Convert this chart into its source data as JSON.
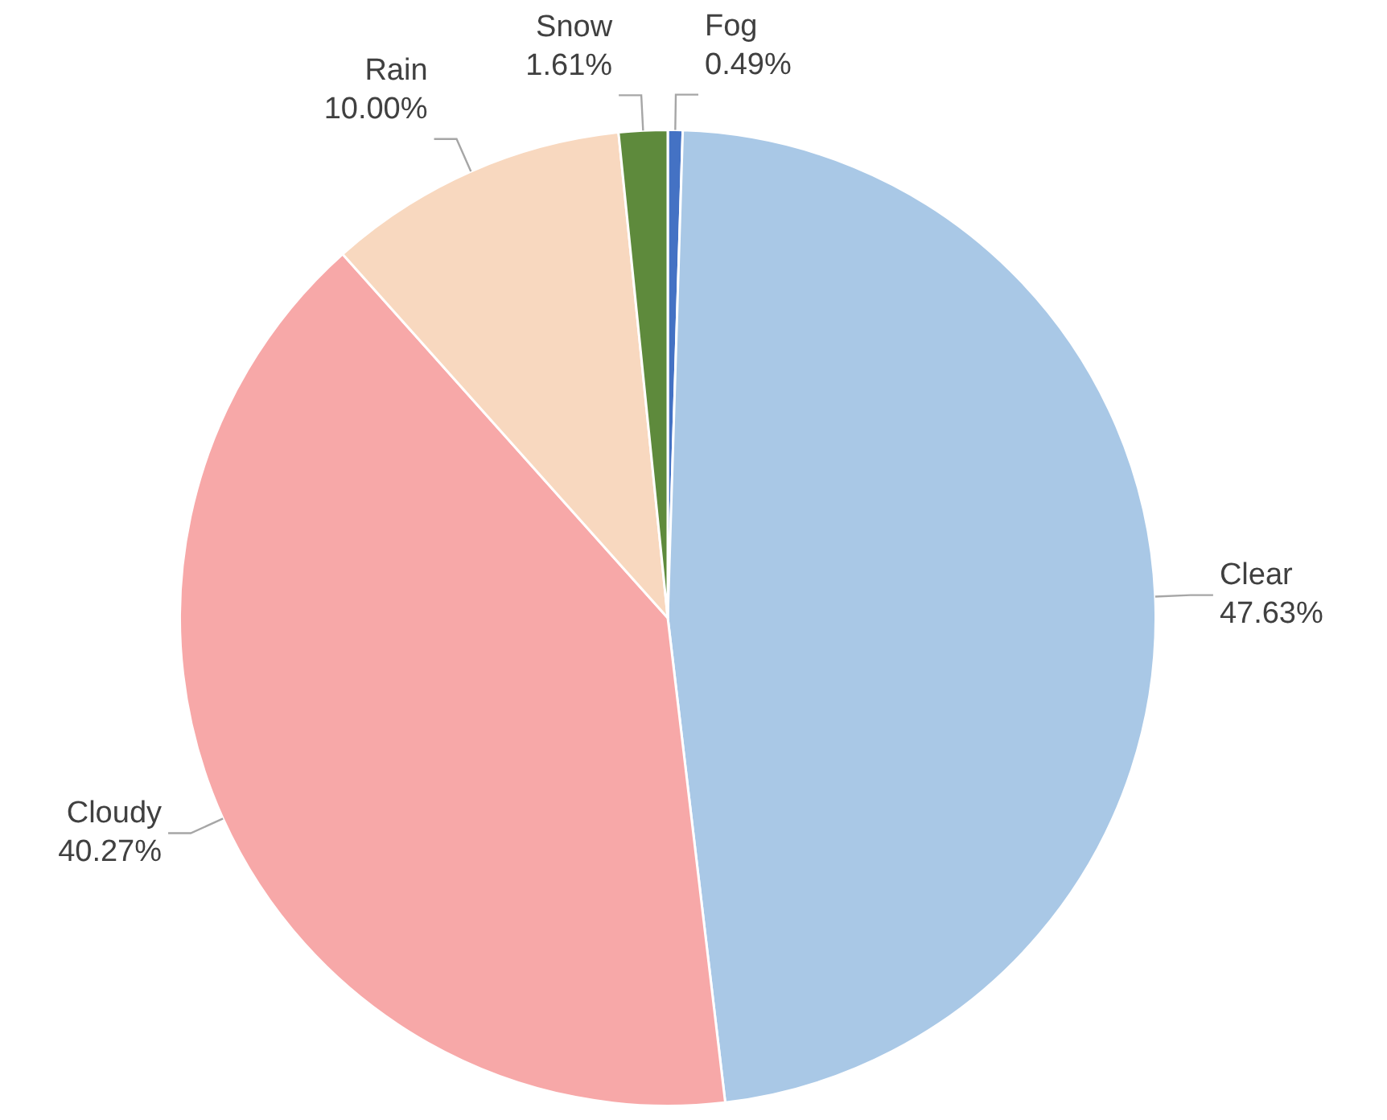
{
  "chart_data": {
    "type": "pie",
    "categories": [
      "Fog",
      "Clear",
      "Cloudy",
      "Rain",
      "Snow"
    ],
    "values": [
      0.49,
      47.63,
      40.27,
      10.0,
      1.61
    ],
    "value_labels": [
      "0.49%",
      "47.63%",
      "40.27%",
      "10.00%",
      "1.61%"
    ],
    "colors": [
      "#4472c4",
      "#a9c8e6",
      "#f7a8a8",
      "#f8d8bf",
      "#5e8a3c"
    ],
    "legend": false
  }
}
